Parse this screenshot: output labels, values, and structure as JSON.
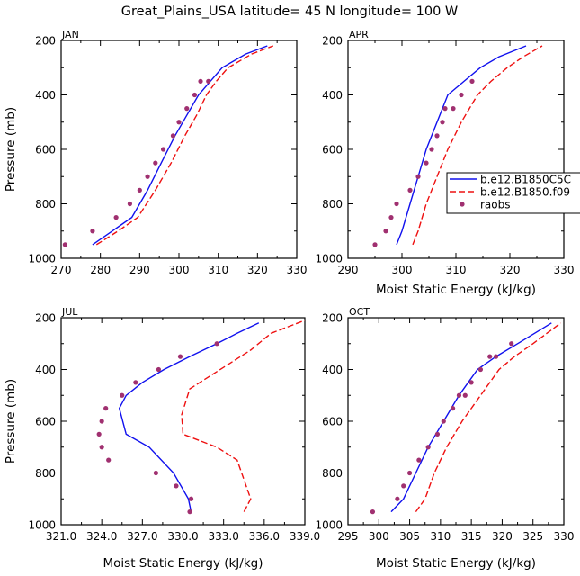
{
  "figure_title": "Great_Plains_USA   latitude= 45 N longitude= 100 W",
  "colors": {
    "model1": "#1010ee",
    "model2": "#ee1010",
    "raobs": "#a03070",
    "axis": "#000000"
  },
  "legend": {
    "entries": [
      {
        "label": "b.e12.B1850C5C",
        "style": "solid",
        "color": "#1010ee"
      },
      {
        "label": "b.e12.B1850.f09",
        "style": "dashed",
        "color": "#ee1010"
      },
      {
        "label": "raobs",
        "style": "marker",
        "color": "#a03070"
      }
    ]
  },
  "chart_data": [
    {
      "type": "line",
      "panel": "JAN",
      "title": "JAN",
      "xlabel": "",
      "ylabel": "Pressure (mb)",
      "xlim": [
        270,
        330
      ],
      "ylim": [
        1000,
        200
      ],
      "xticks": [
        "270",
        "280",
        "290",
        "300",
        "310",
        "320",
        "330"
      ],
      "yticks": [
        "200",
        "400",
        "600",
        "800",
        "1000"
      ],
      "series": [
        {
          "name": "b.e12.B1850C5C",
          "style": "solid",
          "x": [
            278.0,
            283.0,
            288.0,
            292.0,
            295.5,
            299.0,
            302.0,
            305.0,
            308.0,
            311.0,
            317.0,
            322.5
          ],
          "y": [
            950,
            900,
            850,
            750,
            650,
            550,
            475,
            400,
            350,
            300,
            250,
            220
          ]
        },
        {
          "name": "b.e12.B1850.f09",
          "style": "dashed",
          "x": [
            279.0,
            284.5,
            289.5,
            294.0,
            298.0,
            301.5,
            304.5,
            307.0,
            309.5,
            312.5,
            318.5,
            324.0
          ],
          "y": [
            950,
            900,
            850,
            750,
            650,
            550,
            475,
            400,
            350,
            300,
            250,
            220
          ]
        },
        {
          "name": "raobs",
          "style": "marker",
          "x": [
            271.0,
            278.0,
            284.0,
            287.5,
            290.0,
            292.0,
            294.0,
            296.0,
            298.5,
            300.0,
            302.0,
            304.0,
            305.5,
            307.5
          ],
          "y": [
            950,
            900,
            850,
            800,
            750,
            700,
            650,
            600,
            550,
            500,
            450,
            400,
            350,
            350
          ]
        }
      ]
    },
    {
      "type": "line",
      "panel": "APR",
      "title": "APR",
      "xlabel": "Moist Static Energy (kJ/kg)",
      "ylabel": "",
      "xlim": [
        290,
        330
      ],
      "ylim": [
        1000,
        200
      ],
      "xticks": [
        "290",
        "300",
        "310",
        "320",
        "330"
      ],
      "yticks": [
        "200",
        "400",
        "600",
        "800",
        "1000"
      ],
      "series": [
        {
          "name": "b.e12.B1850C5C",
          "style": "solid",
          "x": [
            299.0,
            300.0,
            301.5,
            303.0,
            304.5,
            306.5,
            308.5,
            311.5,
            314.5,
            318.0,
            323.0
          ],
          "y": [
            950,
            900,
            800,
            700,
            600,
            500,
            400,
            350,
            300,
            260,
            220
          ]
        },
        {
          "name": "b.e12.B1850.f09",
          "style": "dashed",
          "x": [
            302.0,
            303.0,
            304.5,
            306.5,
            308.5,
            311.0,
            314.0,
            316.5,
            319.5,
            322.5,
            326.0
          ],
          "y": [
            950,
            900,
            800,
            700,
            600,
            500,
            400,
            350,
            300,
            260,
            220
          ]
        },
        {
          "name": "raobs",
          "style": "marker",
          "x": [
            295.0,
            297.0,
            298.0,
            299.0,
            301.5,
            303.0,
            304.5,
            305.5,
            306.5,
            307.5,
            308.0,
            309.5,
            311.0,
            313.0
          ],
          "y": [
            950,
            900,
            850,
            800,
            750,
            700,
            650,
            600,
            550,
            500,
            450,
            450,
            400,
            350
          ]
        }
      ]
    },
    {
      "type": "line",
      "panel": "JUL",
      "title": "JUL",
      "xlabel": "Moist Static Energy (kJ/kg)",
      "ylabel": "Pressure (mb)",
      "xlim": [
        321.0,
        339.0
      ],
      "ylim": [
        1000,
        200
      ],
      "xticks": [
        "321.0",
        "324.0",
        "327.0",
        "330.0",
        "333.0",
        "336.0",
        "339.0"
      ],
      "yticks": [
        "200",
        "400",
        "600",
        "800",
        "1000"
      ],
      "series": [
        {
          "name": "b.e12.B1850C5C",
          "style": "solid",
          "x": [
            330.6,
            330.4,
            329.3,
            327.5,
            325.8,
            325.3,
            325.8,
            327.0,
            328.6,
            330.5,
            332.5,
            334.0,
            335.6
          ],
          "y": [
            950,
            900,
            800,
            700,
            650,
            550,
            500,
            450,
            400,
            350,
            300,
            260,
            220
          ]
        },
        {
          "name": "b.e12.B1850.f09",
          "style": "dashed",
          "x": [
            334.5,
            335.0,
            334.0,
            332.5,
            330.0,
            329.9,
            330.5,
            332.0,
            333.5,
            335.0,
            336.5,
            339.0
          ],
          "y": [
            950,
            900,
            750,
            700,
            650,
            575,
            475,
            425,
            375,
            325,
            260,
            210
          ]
        },
        {
          "name": "raobs",
          "style": "marker",
          "x": [
            330.5,
            330.6,
            329.5,
            328.0,
            324.5,
            324.0,
            323.8,
            324.0,
            324.3,
            325.5,
            326.5,
            328.2,
            329.8,
            332.5
          ],
          "y": [
            950,
            900,
            850,
            800,
            750,
            700,
            650,
            600,
            550,
            500,
            450,
            400,
            350,
            300
          ]
        }
      ]
    },
    {
      "type": "line",
      "panel": "OCT",
      "title": "OCT",
      "xlabel": "Moist Static Energy (kJ/kg)",
      "ylabel": "",
      "xlim": [
        295,
        330
      ],
      "ylim": [
        1000,
        200
      ],
      "xticks": [
        "295",
        "300",
        "305",
        "310",
        "315",
        "320",
        "325",
        "330"
      ],
      "yticks": [
        "200",
        "400",
        "600",
        "800",
        "1000"
      ],
      "series": [
        {
          "name": "b.e12.B1850C5C",
          "style": "solid",
          "x": [
            302.0,
            304.0,
            306.0,
            308.0,
            310.5,
            313.0,
            316.0,
            319.0,
            322.5,
            328.0
          ],
          "y": [
            950,
            900,
            800,
            700,
            600,
            500,
            400,
            350,
            300,
            220
          ]
        },
        {
          "name": "b.e12.B1850.f09",
          "style": "dashed",
          "x": [
            306.0,
            307.5,
            309.0,
            311.0,
            313.5,
            316.5,
            319.5,
            322.0,
            325.0,
            329.5
          ],
          "y": [
            950,
            900,
            800,
            700,
            600,
            500,
            400,
            350,
            300,
            220
          ]
        },
        {
          "name": "raobs",
          "style": "marker",
          "x": [
            299.0,
            303.0,
            304.0,
            305.0,
            306.5,
            308.0,
            309.5,
            310.5,
            312.0,
            313.0,
            314.0,
            315.0,
            316.5,
            318.0,
            319.0,
            321.5
          ],
          "y": [
            950,
            900,
            850,
            800,
            750,
            700,
            650,
            600,
            550,
            500,
            500,
            450,
            400,
            350,
            350,
            300
          ]
        }
      ]
    }
  ]
}
